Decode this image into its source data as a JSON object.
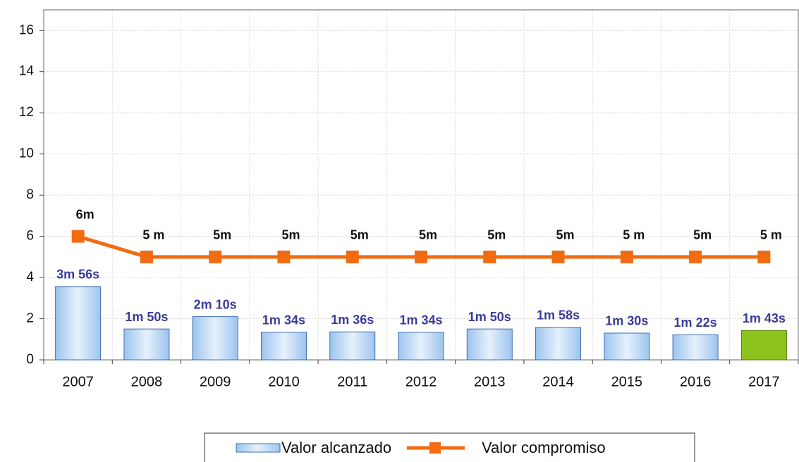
{
  "chart_data": {
    "type": "bar",
    "categories": [
      "2007",
      "2008",
      "2009",
      "2010",
      "2011",
      "2012",
      "2013",
      "2014",
      "2015",
      "2016",
      "2017"
    ],
    "series": [
      {
        "name": "Valor alcanzado",
        "type": "bar",
        "color": "#bcd8f6",
        "colors": [
          "#bcd8f6",
          "#bcd8f6",
          "#bcd8f6",
          "#bcd8f6",
          "#bcd8f6",
          "#bcd8f6",
          "#bcd8f6",
          "#bcd8f6",
          "#bcd8f6",
          "#bcd8f6",
          "#8cc21c"
        ],
        "values": [
          3.56,
          1.5,
          2.1,
          1.34,
          1.36,
          1.34,
          1.5,
          1.58,
          1.3,
          1.22,
          1.43
        ],
        "value_labels": [
          "3m 56s",
          "1m 50s",
          "2m 10s",
          "1m 34s",
          "1m 36s",
          "1m 34s",
          "1m 50s",
          "1m 58s",
          "1m 30s",
          "1m 22s",
          "1m 43s"
        ]
      },
      {
        "name": "Valor compromiso",
        "type": "line",
        "color": "#f26b10",
        "values": [
          6,
          5,
          5,
          5,
          5,
          5,
          5,
          5,
          5,
          5,
          5
        ],
        "value_labels": [
          "6m",
          "5 m",
          "5m",
          "5m",
          "5m",
          "5m",
          "5m",
          "5m",
          "5 m",
          "5m",
          "5 m"
        ]
      }
    ],
    "ylim": [
      0,
      17
    ],
    "yticks": [
      0,
      2,
      4,
      6,
      8,
      10,
      12,
      14,
      16
    ],
    "grid": true,
    "legend": "bottom"
  }
}
